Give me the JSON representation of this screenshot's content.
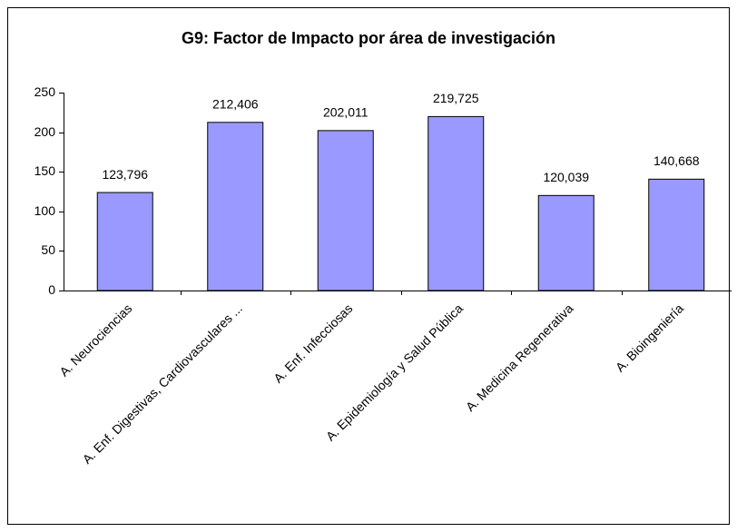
{
  "chart_data": {
    "type": "bar",
    "title": "G9: Factor de Impacto por área de investigación",
    "categories": [
      "A. Neurociencias",
      "A. Enf. Digestivas, Cardiovasculares ...",
      "A. Enf. Infecciosas",
      "A. Epidemiología y Salud Pública",
      "A. Medicina Regenerativa",
      "A. Bioingeniería"
    ],
    "values": [
      123.796,
      212.406,
      202.011,
      219.725,
      120.039,
      140.668
    ],
    "value_labels": [
      "123,796",
      "212,406",
      "202,011",
      "219,725",
      "120,039",
      "140,668"
    ],
    "color": "#9999ff",
    "ylim": [
      0,
      250
    ],
    "yticks": [
      0,
      50,
      100,
      150,
      200,
      250
    ],
    "grid": false
  }
}
